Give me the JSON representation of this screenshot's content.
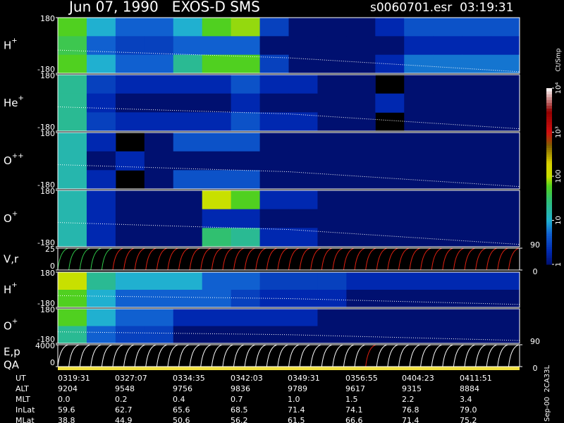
{
  "header": {
    "title": "Jun 07, 1990   EXOS-D SMS",
    "file": "s0060701.esr  03:19:31"
  },
  "colorbar": {
    "unit": "Ct/Smp",
    "lim": [
      1,
      10000
    ],
    "ticks": [
      {
        "value": 10000,
        "label": "10⁴"
      },
      {
        "value": 1000,
        "label": "10³"
      },
      100,
      10,
      1
    ],
    "stops": [
      {
        "value": 1,
        "color": "#001070"
      },
      {
        "value": 2,
        "color": "#0028b0"
      },
      {
        "value": 5,
        "color": "#1060d0"
      },
      {
        "value": 10,
        "color": "#20b0d0"
      },
      {
        "value": 30,
        "color": "#30c070"
      },
      {
        "value": 60,
        "color": "#50d020"
      },
      {
        "value": 100,
        "color": "#c8e000"
      },
      {
        "value": 200,
        "color": "#d8d000"
      },
      {
        "value": 500,
        "color": "#806000"
      },
      {
        "value": 1000,
        "color": "#d01010"
      },
      {
        "value": 3000,
        "color": "#900000"
      },
      {
        "value": 10000,
        "color": "#ffffff"
      }
    ]
  },
  "chart_data": [
    {
      "type": "heatmap",
      "label": "H",
      "sup": "+",
      "ylim": [
        -180,
        180
      ],
      "yticks": [
        180,
        -180
      ],
      "trace": [
        -30,
        -80,
        -170
      ],
      "values": [
        [
          60,
          10,
          5,
          5,
          10,
          60,
          80,
          3,
          1,
          1,
          1,
          2,
          4,
          4,
          4,
          4
        ],
        [
          40,
          5,
          3,
          3,
          5,
          5,
          5,
          1,
          1,
          1,
          1,
          1,
          2,
          2,
          2,
          2
        ],
        [
          60,
          10,
          5,
          5,
          20,
          60,
          60,
          3,
          1,
          1,
          1,
          2,
          6,
          6,
          6,
          6
        ]
      ]
    },
    {
      "type": "heatmap",
      "label": "He",
      "sup": "+",
      "ylim": [
        -180,
        180
      ],
      "yticks": [
        180,
        -180
      ],
      "trace": [
        -25,
        -70,
        -165
      ],
      "values": [
        [
          20,
          3,
          2,
          2,
          2,
          2,
          4,
          2,
          2,
          1,
          1,
          null,
          1,
          1,
          1,
          1
        ],
        [
          20,
          2,
          1,
          1,
          1,
          1,
          2,
          1,
          1,
          1,
          1,
          2,
          1,
          1,
          1,
          1
        ],
        [
          20,
          3,
          2,
          2,
          2,
          2,
          4,
          2,
          2,
          1,
          1,
          null,
          1,
          1,
          1,
          1
        ]
      ]
    },
    {
      "type": "heatmap",
      "label": "O",
      "sup": "++",
      "ylim": [
        -180,
        180
      ],
      "yticks": [
        180,
        -180
      ],
      "trace": [
        -25,
        -70,
        -165
      ],
      "values": [
        [
          15,
          2,
          null,
          1,
          4,
          4,
          4,
          1,
          1,
          1,
          1,
          1,
          1,
          1,
          1,
          1
        ],
        [
          15,
          1,
          2,
          1,
          1,
          1,
          1,
          1,
          1,
          1,
          1,
          1,
          1,
          1,
          1,
          1
        ],
        [
          15,
          2,
          null,
          1,
          4,
          4,
          4,
          1,
          1,
          1,
          1,
          1,
          1,
          1,
          1,
          1
        ]
      ]
    },
    {
      "type": "heatmap",
      "label": "O",
      "sup": "+",
      "ylim": [
        -180,
        180
      ],
      "yticks": [
        180,
        -180
      ],
      "trace": [
        -25,
        -70,
        -165
      ],
      "values": [
        [
          15,
          2,
          1,
          1,
          1,
          100,
          60,
          2,
          2,
          1,
          1,
          1,
          1,
          1,
          1,
          1
        ],
        [
          15,
          2,
          1,
          1,
          1,
          2,
          2,
          1,
          1,
          1,
          1,
          1,
          1,
          1,
          1,
          1
        ],
        [
          15,
          2,
          1,
          1,
          1,
          30,
          20,
          2,
          2,
          1,
          1,
          1,
          1,
          1,
          1,
          1
        ]
      ]
    },
    {
      "type": "sweeps",
      "label": "V,r",
      "ylim": [
        0,
        25
      ],
      "yticks": [
        25,
        0
      ],
      "y2lim": [
        0,
        90
      ],
      "y2ticks": [
        90,
        0
      ],
      "sweeps": [
        {
          "color": "#2ec84a",
          "count": 5
        },
        {
          "color": "#e02010",
          "count": 37
        }
      ]
    },
    {
      "type": "heatmap",
      "label": "H",
      "sup": "+",
      "ylim": [
        -180,
        180
      ],
      "yticks": [
        180,
        -180
      ],
      "trace": [
        -60,
        -90,
        -150
      ],
      "values": [
        [
          100,
          20,
          10,
          10,
          10,
          5,
          5,
          3,
          3,
          3,
          2,
          2,
          2,
          2,
          2,
          2
        ],
        [
          60,
          10,
          5,
          5,
          5,
          5,
          3,
          2,
          2,
          2,
          1,
          1,
          1,
          1,
          1,
          1
        ]
      ]
    },
    {
      "type": "heatmap",
      "label": "O",
      "sup": "+",
      "ylim": [
        -180,
        180
      ],
      "yticks": [
        180,
        -180
      ],
      "trace": [
        -60,
        -90,
        -150
      ],
      "values": [
        [
          60,
          10,
          5,
          5,
          2,
          2,
          2,
          2,
          2,
          1,
          1,
          1,
          1,
          1,
          1,
          1
        ],
        [
          20,
          5,
          3,
          3,
          1,
          1,
          1,
          1,
          1,
          1,
          1,
          1,
          1,
          1,
          1,
          1
        ]
      ]
    },
    {
      "type": "sweeps",
      "label": "E,p",
      "label2": "QA",
      "ylim": [
        0,
        4000
      ],
      "yticks": [
        4000,
        0
      ],
      "y2lim": [
        0,
        90
      ],
      "y2ticks": [
        90,
        0
      ],
      "sweeps": [
        {
          "color": "#ffffff",
          "count": 28
        },
        {
          "color": "#e02010",
          "count": 1
        },
        {
          "color": "#ffffff",
          "count": 13
        }
      ]
    }
  ],
  "ephemeris": {
    "rows": [
      {
        "label": "UT",
        "values": [
          "0319:31",
          "0327:07",
          "0334:35",
          "0342:03",
          "0349:31",
          "0356:55",
          "0404:23",
          "0411:51"
        ]
      },
      {
        "label": "ALT",
        "values": [
          "9204",
          "9548",
          "9756",
          "9836",
          "9789",
          "9617",
          "9315",
          "8884"
        ]
      },
      {
        "label": "MLT",
        "values": [
          "0.0",
          "0.2",
          "0.4",
          "0.7",
          "1.0",
          "1.5",
          "2.2",
          "3.4"
        ]
      },
      {
        "label": "InLat",
        "values": [
          "59.6",
          "62.7",
          "65.6",
          "68.5",
          "71.4",
          "74.1",
          "76.8",
          "79.0"
        ]
      },
      {
        "label": "MLat",
        "values": [
          "38.8",
          "44.9",
          "50.6",
          "56.2",
          "61.5",
          "66.6",
          "71.4",
          "75.2"
        ]
      }
    ]
  },
  "footer": "Sep-00  2CA33L"
}
